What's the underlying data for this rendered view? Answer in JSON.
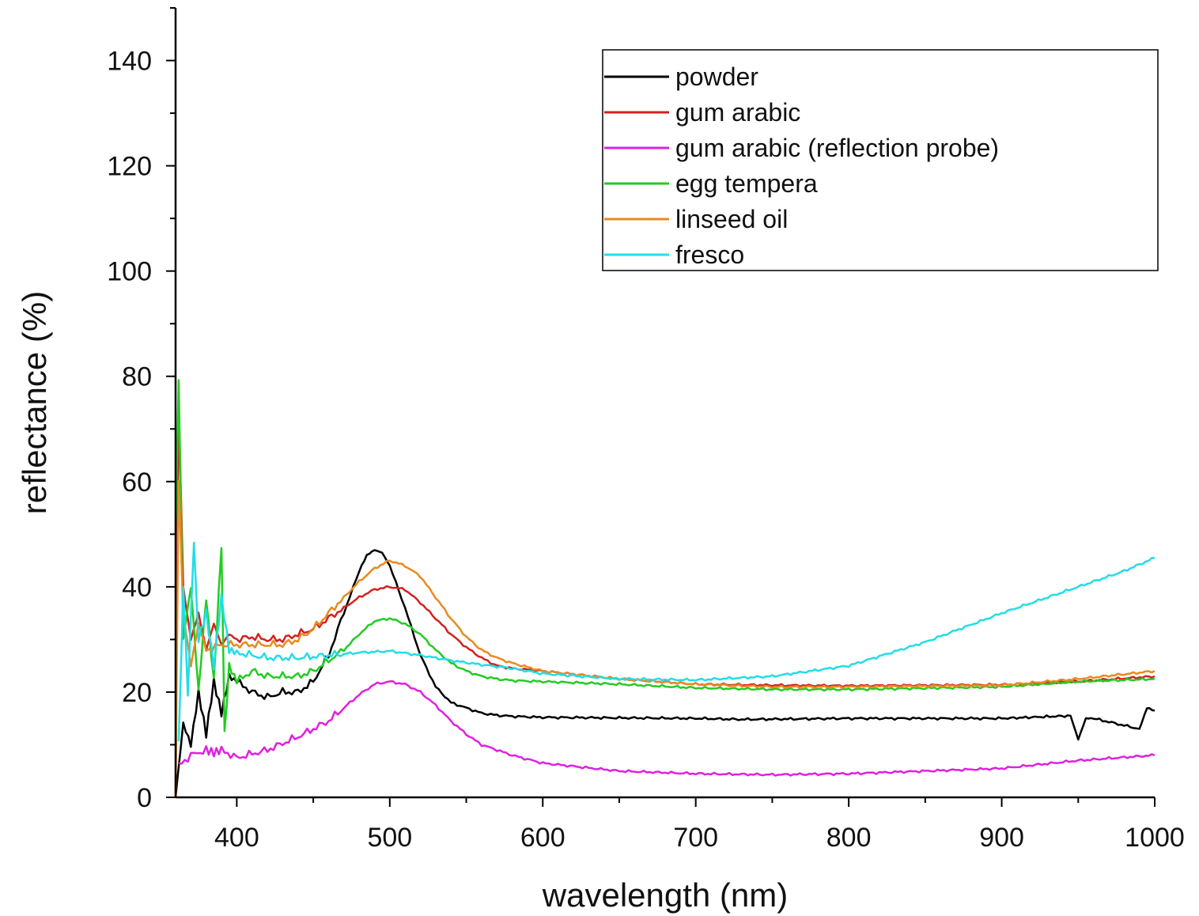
{
  "chart_data": {
    "type": "line",
    "xlabel": "wavelength (nm)",
    "ylabel": "reflectance (%)",
    "xlim": [
      360,
      1000
    ],
    "ylim": [
      0,
      150
    ],
    "xticks": [
      400,
      500,
      600,
      700,
      800,
      900,
      1000
    ],
    "yticks": [
      0,
      20,
      40,
      60,
      80,
      100,
      120,
      140
    ],
    "grid": false,
    "legend_position": "top-right",
    "series": [
      {
        "name": "powder",
        "color": "#000000",
        "x": [
          360,
          365,
          370,
          375,
          380,
          385,
          390,
          395,
          400,
          410,
          420,
          430,
          440,
          450,
          460,
          470,
          480,
          485,
          490,
          495,
          500,
          510,
          520,
          530,
          540,
          550,
          560,
          570,
          580,
          600,
          650,
          700,
          730,
          800,
          900,
          945,
          950,
          955,
          960,
          990,
          995,
          1000
        ],
        "y": [
          0,
          14,
          10,
          20,
          12,
          22,
          16,
          23,
          22,
          20,
          19,
          20,
          20,
          22,
          27,
          35,
          43,
          46,
          47,
          46.5,
          44,
          36,
          27,
          21,
          18,
          17,
          16,
          15.6,
          15.4,
          15.2,
          15.1,
          15.0,
          14.8,
          15.0,
          15.0,
          15.5,
          11,
          15,
          15,
          13,
          17,
          16.5
        ]
      },
      {
        "name": "gum arabic",
        "color": "#d42020",
        "x": [
          360,
          362,
          365,
          370,
          375,
          380,
          385,
          390,
          395,
          400,
          410,
          420,
          430,
          440,
          450,
          460,
          470,
          480,
          490,
          500,
          510,
          520,
          530,
          540,
          550,
          560,
          570,
          580,
          600,
          650,
          700,
          750,
          800,
          900,
          950,
          1000
        ],
        "y": [
          0,
          75,
          40,
          30,
          35,
          28,
          33,
          29,
          31,
          30,
          30.5,
          30,
          30,
          31,
          32,
          34,
          36,
          38,
          39.5,
          40,
          39.5,
          37,
          34,
          31,
          28.5,
          26.5,
          25,
          24.5,
          24,
          22.5,
          21.5,
          21.3,
          21.2,
          21.4,
          22,
          23
        ]
      },
      {
        "name": "gum arabic (reflection probe)",
        "color": "#e020e0",
        "x": [
          362,
          370,
          380,
          385,
          390,
          400,
          420,
          440,
          460,
          470,
          480,
          490,
          500,
          510,
          520,
          530,
          540,
          550,
          560,
          580,
          600,
          650,
          700,
          750,
          800,
          850,
          900,
          950,
          1000
        ],
        "y": [
          6,
          8,
          9,
          8.5,
          9,
          7.5,
          9,
          11.5,
          14.5,
          17,
          19.5,
          21.5,
          22,
          21.5,
          20,
          17.5,
          14.5,
          12,
          10,
          8,
          6.5,
          5,
          4.5,
          4.3,
          4.5,
          5,
          5.5,
          7,
          8
        ]
      },
      {
        "name": "egg tempera",
        "color": "#22cc22",
        "x": [
          360,
          362,
          365,
          370,
          375,
          380,
          385,
          390,
          392,
          395,
          400,
          410,
          420,
          430,
          440,
          450,
          460,
          470,
          480,
          490,
          500,
          510,
          520,
          530,
          540,
          550,
          560,
          570,
          580,
          600,
          650,
          700,
          750,
          800,
          900,
          950,
          1000
        ],
        "y": [
          50,
          80,
          30,
          40,
          20,
          38,
          22,
          48,
          12,
          25,
          22,
          24,
          23,
          23,
          23,
          24,
          26,
          28,
          31,
          33.5,
          34,
          33,
          31,
          28,
          25.5,
          24,
          23,
          22.5,
          22.2,
          22,
          21.5,
          20.8,
          20.5,
          20.5,
          21,
          22,
          22.5
        ]
      },
      {
        "name": "linseed oil",
        "color": "#e88a20",
        "x": [
          360,
          362,
          365,
          370,
          375,
          380,
          390,
          400,
          410,
          420,
          430,
          440,
          450,
          460,
          470,
          480,
          490,
          500,
          510,
          520,
          530,
          540,
          550,
          560,
          570,
          580,
          600,
          650,
          700,
          750,
          800,
          900,
          950,
          1000
        ],
        "y": [
          0,
          60,
          35,
          25,
          33,
          28,
          29,
          29,
          29,
          29,
          29,
          30,
          32,
          35,
          38,
          41,
          43.5,
          45,
          44,
          42,
          38,
          34,
          30.5,
          28,
          26.5,
          25.5,
          24,
          22.5,
          21.5,
          21,
          21,
          21.3,
          22.5,
          24
        ]
      },
      {
        "name": "fresco",
        "color": "#22dde8",
        "x": [
          362,
          365,
          368,
          372,
          375,
          380,
          385,
          390,
          395,
          400,
          420,
          440,
          460,
          480,
          500,
          520,
          540,
          560,
          580,
          600,
          650,
          700,
          750,
          800,
          850,
          900,
          940,
          950,
          960,
          980,
          1000
        ],
        "y": [
          10,
          40,
          20,
          48,
          30,
          35,
          25,
          38,
          28,
          27.5,
          26.5,
          26.5,
          27,
          27.5,
          27.8,
          27,
          26,
          25.2,
          24.5,
          23.5,
          22.5,
          22.3,
          23,
          25,
          29.5,
          35,
          39,
          40,
          41,
          43,
          45.5
        ]
      }
    ]
  }
}
